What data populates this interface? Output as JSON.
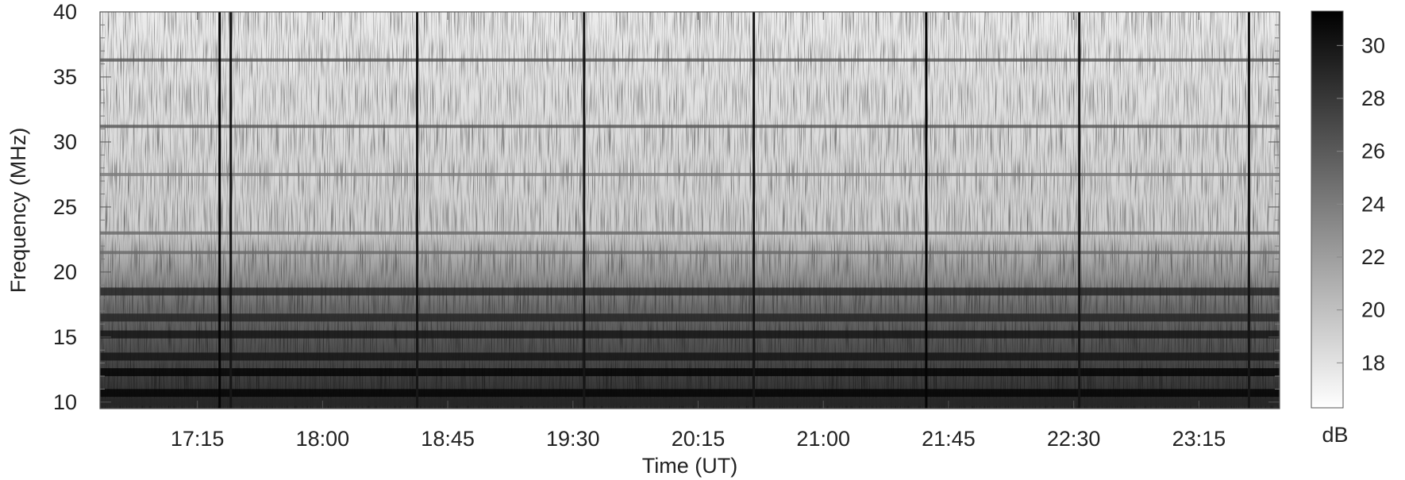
{
  "chart_data": {
    "type": "heatmap",
    "xlabel": "Time (UT)",
    "ylabel": "Frequency (MHz)",
    "colorbar_label": "dB",
    "x_range": [
      "16:40",
      "23:44"
    ],
    "x_ticks": [
      "17:15",
      "18:00",
      "18:45",
      "19:30",
      "20:15",
      "21:00",
      "21:45",
      "22:30",
      "23:15"
    ],
    "ylim": [
      9.5,
      40
    ],
    "y_ticks": [
      "10",
      "15",
      "20",
      "25",
      "30",
      "35",
      "40"
    ],
    "colorbar_range": [
      16.3,
      31.3
    ],
    "colorbar_ticks": [
      "18",
      "20",
      "22",
      "24",
      "26",
      "28",
      "30"
    ],
    "colormap": [
      "#ffffff",
      "#000000"
    ],
    "vertical_bursts": [
      {
        "time": "17:23",
        "intensity_db": 31
      },
      {
        "time": "17:27",
        "intensity_db": 30
      },
      {
        "time": "18:34",
        "intensity_db": 30
      },
      {
        "time": "19:34",
        "intensity_db": 30
      },
      {
        "time": "20:35",
        "intensity_db": 30
      },
      {
        "time": "21:37",
        "intensity_db": 31
      },
      {
        "time": "22:32",
        "intensity_db": 30
      },
      {
        "time": "23:33",
        "intensity_db": 30
      }
    ],
    "horizontal_bands": [
      {
        "freq_mhz": 36.3,
        "intensity_db": 26
      },
      {
        "freq_mhz": 31.2,
        "intensity_db": 26
      },
      {
        "freq_mhz": 27.5,
        "intensity_db": 24
      },
      {
        "freq_mhz": 23.0,
        "intensity_db": 25
      },
      {
        "freq_mhz": 21.5,
        "intensity_db": 25
      },
      {
        "freq_mhz": 18.5,
        "intensity_db": 29
      },
      {
        "freq_mhz": 16.5,
        "intensity_db": 29
      },
      {
        "freq_mhz": 15.2,
        "intensity_db": 30
      },
      {
        "freq_mhz": 13.5,
        "intensity_db": 30
      },
      {
        "freq_mhz": 12.3,
        "intensity_db": 31
      },
      {
        "freq_mhz": 10.7,
        "intensity_db": 31
      },
      {
        "freq_mhz": 10.0,
        "intensity_db": 29
      }
    ]
  }
}
